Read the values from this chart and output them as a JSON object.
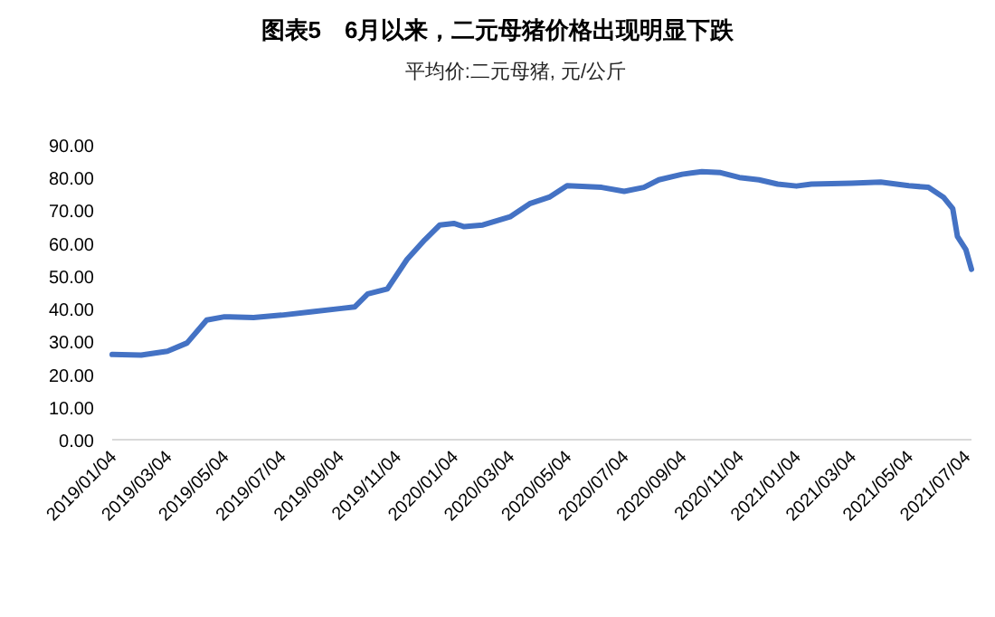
{
  "chart_data": {
    "type": "line",
    "title": "图表5　6月以来，二元母猪价格出现明显下跌",
    "subtitle": "平均价:二元母猪, 元/公斤",
    "x": [
      "2019-01-04",
      "2019-02-04",
      "2019-03-04",
      "2019-03-25",
      "2019-04-15",
      "2019-05-04",
      "2019-06-04",
      "2019-07-04",
      "2019-08-04",
      "2019-09-04",
      "2019-09-20",
      "2019-10-04",
      "2019-10-25",
      "2019-11-15",
      "2019-12-04",
      "2019-12-20",
      "2020-01-04",
      "2020-01-15",
      "2020-02-04",
      "2020-03-04",
      "2020-03-25",
      "2020-04-15",
      "2020-05-04",
      "2020-05-20",
      "2020-06-10",
      "2020-07-04",
      "2020-07-25",
      "2020-08-10",
      "2020-09-04",
      "2020-09-25",
      "2020-10-15",
      "2020-11-04",
      "2020-11-25",
      "2020-12-15",
      "2021-01-04",
      "2021-01-20",
      "2021-03-04",
      "2021-04-04",
      "2021-05-04",
      "2021-05-25",
      "2021-06-10",
      "2021-06-20",
      "2021-06-25",
      "2021-07-04",
      "2021-07-10"
    ],
    "series": [
      {
        "color": "#4472c4",
        "values": [
          26,
          25.8,
          27,
          29.5,
          36.5,
          37.5,
          37.3,
          38,
          39,
          40,
          40.5,
          44.5,
          46,
          55,
          61,
          65.5,
          66,
          65,
          65.5,
          68,
          72,
          74,
          77.5,
          77.3,
          77,
          75.8,
          77,
          79.3,
          81,
          81.8,
          81.5,
          80,
          79.3,
          78,
          77.4,
          78,
          78.3,
          78.6,
          77.5,
          77,
          74,
          70.5,
          62,
          58,
          52
        ]
      }
    ],
    "ylim": [
      0,
      90
    ],
    "yticks": [
      {
        "value": 0,
        "label": "0.00"
      },
      {
        "value": 10,
        "label": "10.00"
      },
      {
        "value": 20,
        "label": "20.00"
      },
      {
        "value": 30,
        "label": "30.00"
      },
      {
        "value": 40,
        "label": "40.00"
      },
      {
        "value": 50,
        "label": "50.00"
      },
      {
        "value": 60,
        "label": "60.00"
      },
      {
        "value": 70,
        "label": "70.00"
      },
      {
        "value": 80,
        "label": "80.00"
      },
      {
        "value": 90,
        "label": "90.00"
      }
    ],
    "xlim": [
      "2019-01-04",
      "2021-07-10"
    ],
    "xticks": [
      {
        "value": "2019-01-04",
        "label": "2019/01/04"
      },
      {
        "value": "2019-03-04",
        "label": "2019/03/04"
      },
      {
        "value": "2019-05-04",
        "label": "2019/05/04"
      },
      {
        "value": "2019-07-04",
        "label": "2019/07/04"
      },
      {
        "value": "2019-09-04",
        "label": "2019/09/04"
      },
      {
        "value": "2019-11-04",
        "label": "2019/11/04"
      },
      {
        "value": "2020-01-04",
        "label": "2020/01/04"
      },
      {
        "value": "2020-03-04",
        "label": "2020/03/04"
      },
      {
        "value": "2020-05-04",
        "label": "2020/05/04"
      },
      {
        "value": "2020-07-04",
        "label": "2020/07/04"
      },
      {
        "value": "2020-09-04",
        "label": "2020/09/04"
      },
      {
        "value": "2020-11-04",
        "label": "2020/11/04"
      },
      {
        "value": "2021-01-04",
        "label": "2021/01/04"
      },
      {
        "value": "2021-03-04",
        "label": "2021/03/04"
      },
      {
        "value": "2021-05-04",
        "label": "2021/05/04"
      },
      {
        "value": "2021-07-04",
        "label": "2021/07/04"
      }
    ],
    "grid": false,
    "marker": "none",
    "line_style": "solid"
  }
}
